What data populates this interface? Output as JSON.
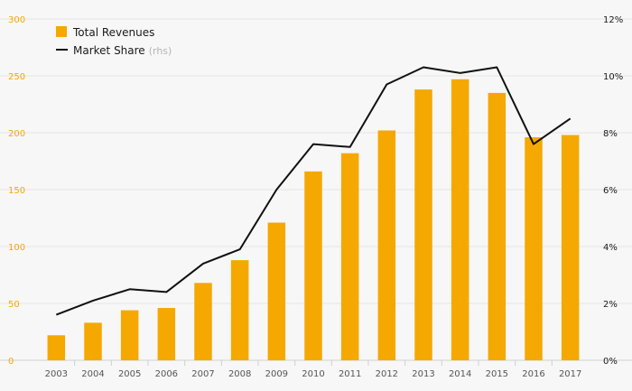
{
  "chart_data": {
    "type": "bar",
    "categories": [
      "2003",
      "2004",
      "2005",
      "2006",
      "2007",
      "2008",
      "2009",
      "2010",
      "2011",
      "2012",
      "2013",
      "2014",
      "2015",
      "2016",
      "2017"
    ],
    "series": [
      {
        "name": "Total Revenues",
        "type": "bar",
        "axis": "left",
        "color": "#f5a800",
        "values": [
          22,
          33,
          44,
          46,
          68,
          88,
          121,
          166,
          182,
          202,
          238,
          247,
          235,
          196,
          198
        ]
      },
      {
        "name": "Market Share",
        "type": "line",
        "axis": "right",
        "color": "#111111",
        "values": [
          1.6,
          2.1,
          2.5,
          2.4,
          3.4,
          3.9,
          6.0,
          7.6,
          7.5,
          9.7,
          10.3,
          10.1,
          10.3,
          7.6,
          8.5
        ]
      }
    ],
    "legend": {
      "position": "top-left",
      "items": [
        {
          "label": "Total Revenues",
          "suffix": ""
        },
        {
          "label": "Market Share",
          "suffix": "(rhs)"
        }
      ]
    },
    "y_left": {
      "ylim": [
        0,
        300
      ],
      "ticks": [
        "0",
        "50",
        "100",
        "150",
        "200",
        "250",
        "300"
      ],
      "color": "#f5a800"
    },
    "y_right": {
      "ylim": [
        0,
        12
      ],
      "ticks": [
        "0%",
        "2%",
        "4%",
        "6%",
        "8%",
        "10%",
        "12%"
      ],
      "color": "#1a1a1a"
    },
    "grid": true,
    "title": "",
    "xlabel": "",
    "ylabel": ""
  }
}
